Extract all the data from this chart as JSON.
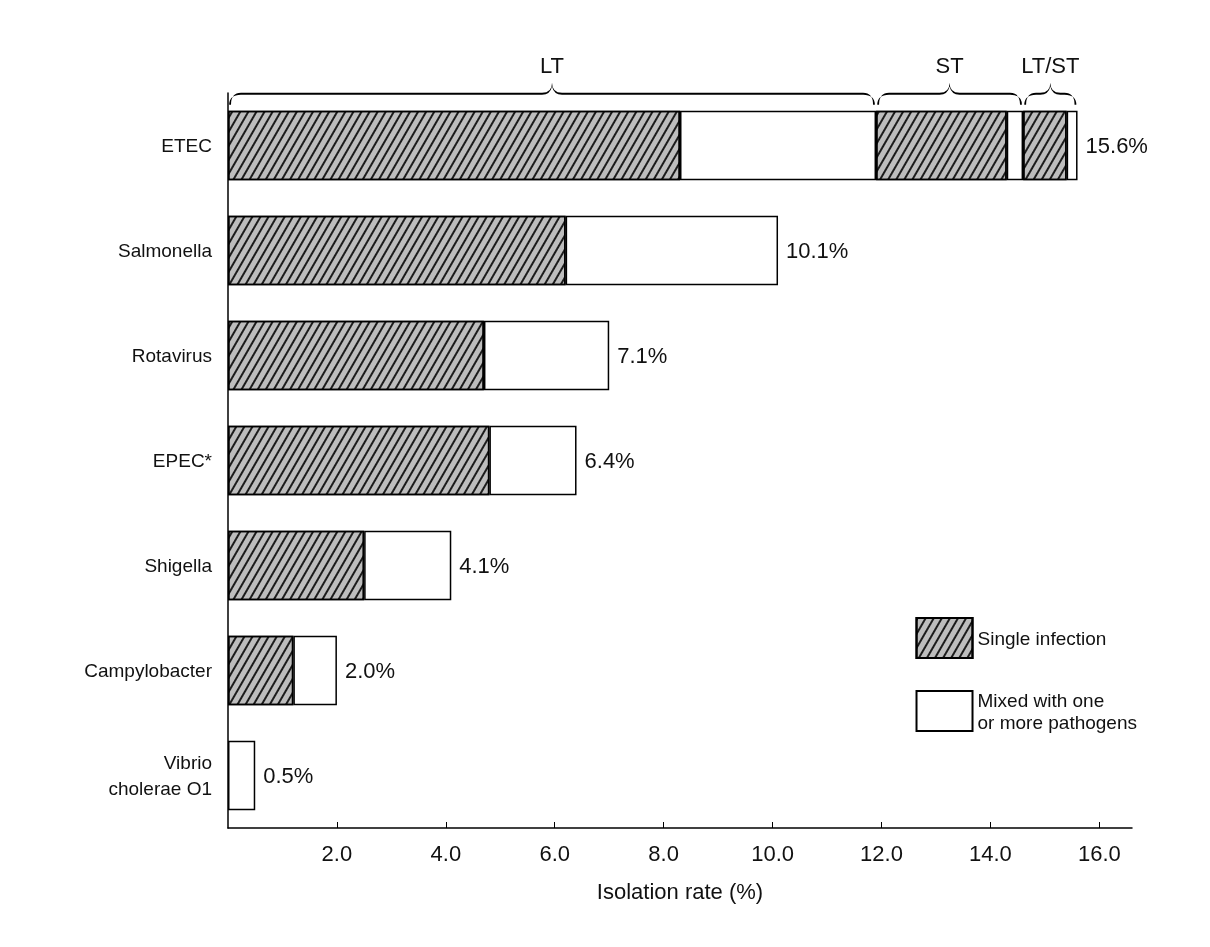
{
  "chart_data": {
    "type": "bar",
    "orientation": "horizontal",
    "stacked": true,
    "xlabel": "Isolation rate (%)",
    "categories": [
      "ETEC",
      "Salmonella",
      "Rotavirus",
      "EPEC*",
      "Shigella",
      "Campylobacter",
      "Vibrio\ncholerae O1"
    ],
    "series": [
      {
        "name": "Single infection",
        "color": "#bdbdbd",
        "values": [
          8.3,
          6.2,
          4.7,
          4.8,
          2.5,
          1.2,
          null
        ]
      },
      {
        "name": "Mixed with one\nor more pathogens",
        "color": "#ffffff",
        "values": [
          3.6,
          3.9,
          2.3,
          1.6,
          1.6,
          0.8,
          0.5
        ]
      },
      {
        "color": "#bdbdbd",
        "values": [
          2.4,
          null,
          null,
          null,
          null,
          null,
          null
        ]
      },
      {
        "color": "#ffffff",
        "values": [
          0.3,
          null,
          null,
          null,
          null,
          null,
          null
        ]
      },
      {
        "color": "#bdbdbd",
        "values": [
          0.8,
          null,
          null,
          null,
          null,
          null,
          null
        ]
      },
      {
        "color": "#ffffff",
        "values": [
          0.2,
          null,
          null,
          null,
          null,
          null,
          null
        ]
      }
    ],
    "totals": [
      "15.6%",
      "10.1%",
      "7.1%",
      "6.4%",
      "4.1%",
      "2.0%",
      "0.5%"
    ],
    "annotations": [
      "LT",
      "ST",
      "LT/ST"
    ],
    "xlim": [
      0,
      16.6
    ],
    "xticks": [
      {
        "value": 2,
        "label": "2.0"
      },
      {
        "value": 4,
        "label": "4.0"
      },
      {
        "value": 6,
        "label": "6.0"
      },
      {
        "value": 8,
        "label": "8.0"
      },
      {
        "value": 10,
        "label": "10.0"
      },
      {
        "value": 12,
        "label": "12.0"
      },
      {
        "value": 14,
        "label": "14.0"
      },
      {
        "value": 16,
        "label": "16.0"
      }
    ],
    "grid": false,
    "legend": "bottom right"
  }
}
